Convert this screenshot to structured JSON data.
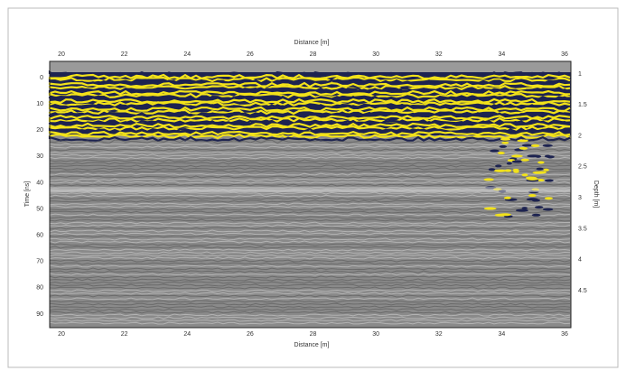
{
  "plot": {
    "x_label": "Distance [m]",
    "x_ticks": [
      "20",
      "22",
      "24",
      "26",
      "28",
      "30",
      "32",
      "34",
      "36"
    ],
    "y_label": "Time [ns]",
    "y_ticks": [
      "0",
      "10",
      "20",
      "30",
      "40",
      "50",
      "60",
      "70",
      "80",
      "90"
    ],
    "y2_label": "Depth [m]",
    "y2_ticks": [
      "1",
      "1.5",
      "2",
      "2.5",
      "3",
      "3.5",
      "4",
      "4.5"
    ]
  }
}
